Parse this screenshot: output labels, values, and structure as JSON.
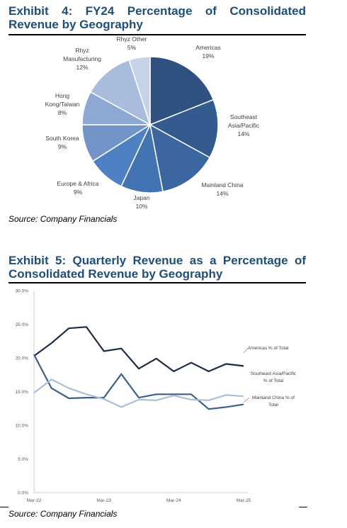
{
  "exhibit4": {
    "title": "Exhibit 4: FY24 Percentage of Consolidated Revenue by Geography",
    "source": "Source: Company Financials"
  },
  "exhibit5": {
    "title": "Exhibit 5: Quarterly Revenue as a Percentage of Consolidated Revenue by Geography",
    "source": "Source: Company Financials"
  },
  "chart_data": [
    {
      "type": "pie",
      "title": "FY24 Percentage of Consolidated Revenue by Geography",
      "slices": [
        {
          "label": "Americas",
          "value": 19,
          "display": "19%",
          "color": "#2f5180"
        },
        {
          "label": "Southeast Asia/Pacific",
          "value": 14,
          "display": "14%",
          "color": "#345b8f"
        },
        {
          "label": "Mainland China",
          "value": 14,
          "display": "14%",
          "color": "#3b669f"
        },
        {
          "label": "Japan",
          "value": 10,
          "display": "10%",
          "color": "#4373b3"
        },
        {
          "label": "Europe & Africa",
          "value": 9,
          "display": "9%",
          "color": "#4d81c3"
        },
        {
          "label": "South Korea",
          "value": 9,
          "display": "9%",
          "color": "#7394c9"
        },
        {
          "label": "Hong Kong/Taiwan",
          "value": 8,
          "display": "8%",
          "color": "#8ea8d4"
        },
        {
          "label": "Rhyz Manufacturing",
          "value": 12,
          "display": "12%",
          "color": "#a9bcdd"
        },
        {
          "label": "Rhyz Other",
          "value": 5,
          "display": "5%",
          "color": "#c6d2e8"
        }
      ]
    },
    {
      "type": "line",
      "title": "Quarterly Revenue as a Percentage of Consolidated Revenue by Geography",
      "y_tick_labels": [
        "0.0%",
        "5.0%",
        "10.0%",
        "15.0%",
        "20.0%",
        "25.0%",
        "30.0%"
      ],
      "ylim": [
        0,
        30
      ],
      "x_tick_labels": [
        "Mar-22",
        "Mar-23",
        "Mar-24",
        "Mar-25"
      ],
      "x": [
        "Mar-22",
        "Jun-22",
        "Sep-22",
        "Dec-22",
        "Mar-23",
        "Jun-23",
        "Sep-23",
        "Dec-23",
        "Mar-24",
        "Jun-24",
        "Sep-24",
        "Dec-24",
        "Mar-25"
      ],
      "grid": false,
      "series": [
        {
          "name": "Americas % of Total",
          "color": "#1f2a44",
          "values": [
            20.3,
            22.2,
            24.4,
            24.6,
            21.0,
            21.4,
            18.4,
            19.9,
            18.0,
            19.3,
            18.0,
            19.1,
            18.8
          ]
        },
        {
          "name": "Southeast Asia/Pacific % of Total",
          "color": "#3e5f88",
          "values": [
            20.5,
            15.5,
            14.0,
            14.1,
            14.1,
            17.6,
            14.1,
            14.6,
            14.6,
            14.6,
            12.4,
            12.7,
            13.1
          ]
        },
        {
          "name": "Mainland China % of Total",
          "color": "#a9bfd8",
          "values": [
            14.8,
            16.8,
            15.5,
            14.6,
            13.9,
            12.7,
            13.8,
            13.7,
            14.4,
            13.8,
            13.7,
            14.5,
            14.3
          ]
        }
      ]
    }
  ]
}
